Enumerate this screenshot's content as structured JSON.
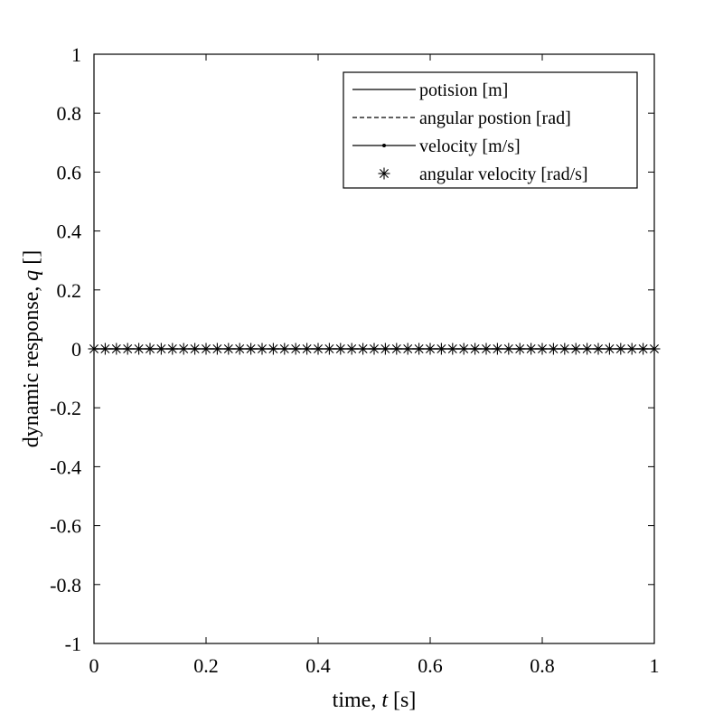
{
  "chart_data": {
    "type": "line",
    "title": "",
    "xlabel": {
      "text": "time,  ",
      "var": "t",
      "unit": " [s]"
    },
    "ylabel": {
      "text": "dynamic response,  ",
      "var": "q",
      "unit": " []"
    },
    "xlim": [
      0,
      1
    ],
    "ylim": [
      -1,
      1
    ],
    "xticks": [
      0,
      0.2,
      0.4,
      0.6,
      0.8,
      1
    ],
    "xtick_labels": [
      "0",
      "0.2",
      "0.4",
      "0.6",
      "0.8",
      "1"
    ],
    "yticks": [
      -1,
      -0.8,
      -0.6,
      -0.4,
      -0.2,
      0,
      0.2,
      0.4,
      0.6,
      0.8,
      1
    ],
    "ytick_labels": [
      "-1",
      "-0.8",
      "-0.6",
      "-0.4",
      "-0.2",
      "0",
      "0.2",
      "0.4",
      "0.6",
      "0.8",
      "1"
    ],
    "grid": false,
    "legend_position": "top-right",
    "line_color": "#000000",
    "series": [
      {
        "name": "potision [m]",
        "style": "solid",
        "marker": "none",
        "x": [
          0,
          1
        ],
        "y": [
          0,
          0
        ]
      },
      {
        "name": "angular postion [rad]",
        "style": "dashed",
        "marker": "none",
        "x": [
          0,
          1
        ],
        "y": [
          0,
          0
        ]
      },
      {
        "name": "velocity [m/s]",
        "style": "solid",
        "marker": "dot",
        "x": [
          0,
          1
        ],
        "y": [
          0,
          0
        ]
      },
      {
        "name": "angular velocity [rad/s]",
        "style": "none",
        "marker": "asterisk",
        "x": [
          0,
          0.02,
          0.04,
          0.06,
          0.08,
          0.1,
          0.12,
          0.14,
          0.16,
          0.18,
          0.2,
          0.22,
          0.24,
          0.26,
          0.28,
          0.3,
          0.32,
          0.34,
          0.36,
          0.38,
          0.4,
          0.42,
          0.44,
          0.46,
          0.48,
          0.5,
          0.52,
          0.54,
          0.56,
          0.58,
          0.6,
          0.62,
          0.64,
          0.66,
          0.68,
          0.7,
          0.72,
          0.74,
          0.76,
          0.78,
          0.8,
          0.82,
          0.84,
          0.86,
          0.88,
          0.9,
          0.92,
          0.94,
          0.96,
          0.98,
          1
        ],
        "y": [
          0,
          0,
          0,
          0,
          0,
          0,
          0,
          0,
          0,
          0,
          0,
          0,
          0,
          0,
          0,
          0,
          0,
          0,
          0,
          0,
          0,
          0,
          0,
          0,
          0,
          0,
          0,
          0,
          0,
          0,
          0,
          0,
          0,
          0,
          0,
          0,
          0,
          0,
          0,
          0,
          0,
          0,
          0,
          0,
          0,
          0,
          0,
          0,
          0,
          0,
          0
        ]
      }
    ]
  }
}
